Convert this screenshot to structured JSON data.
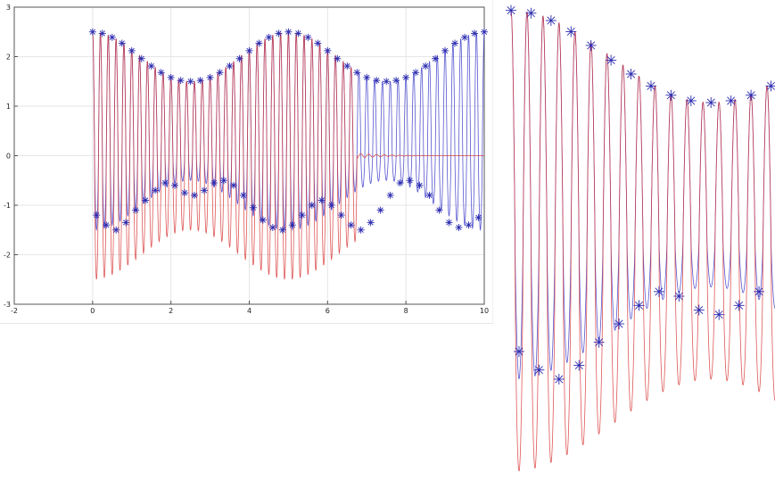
{
  "chart_data": [
    {
      "type": "line",
      "title": "",
      "xlabel": "",
      "ylabel": "",
      "xlim": [
        -2,
        10
      ],
      "ylim": [
        -3,
        3
      ],
      "xticks": [
        "-2",
        "0",
        "2",
        "4",
        "6",
        "8",
        "10"
      ],
      "yticks": [
        "-3",
        "-2",
        "-1",
        "0",
        "1",
        "2",
        "3"
      ],
      "grid": true,
      "legend": "none",
      "colors": {
        "signal": "#d93a3a",
        "model": "#4444cc",
        "markers": "#2b2bb0",
        "grid": "#e6e6e6",
        "axes": "#555555"
      },
      "signal_description": "oscillation period ~0.2 starting at x=0, envelope peaks 2.5 at x=0 and x=5, min 1.5 at x=2.5, red trace collapses to ~0 after x=6.75",
      "series": [
        {
          "name": "",
          "marker": "*",
          "x": [
            0.0,
            0.25,
            0.5,
            0.75,
            1.0,
            1.25,
            1.5,
            1.75,
            2.0,
            2.25,
            2.5,
            2.75,
            3.0,
            3.25,
            3.5,
            3.75,
            4.0,
            4.25,
            4.5,
            4.75,
            5.0,
            5.25,
            5.5,
            5.75,
            6.0,
            6.25,
            6.5,
            6.75,
            7.0,
            7.25,
            7.5,
            7.75,
            8.0,
            8.25,
            8.5,
            8.75,
            9.0,
            9.25,
            9.5,
            9.75,
            10.0
          ],
          "y": [
            2.5,
            2.47,
            2.39,
            2.27,
            2.12,
            1.96,
            1.81,
            1.68,
            1.58,
            1.52,
            1.5,
            1.52,
            1.58,
            1.68,
            1.81,
            1.96,
            2.12,
            2.27,
            2.39,
            2.47,
            2.5,
            2.47,
            2.39,
            2.27,
            2.12,
            1.96,
            1.81,
            1.68,
            1.58,
            1.52,
            1.5,
            1.52,
            1.58,
            1.68,
            1.81,
            1.96,
            2.12,
            2.27,
            2.39,
            2.47,
            2.5
          ]
        },
        {
          "name": "",
          "marker": "*",
          "x": [
            0.1,
            0.35,
            0.6,
            0.85,
            1.1,
            1.35,
            1.6,
            1.85,
            2.1,
            2.35,
            2.6,
            2.85,
            3.1,
            3.35,
            3.6,
            3.85,
            4.1,
            4.35,
            4.6,
            4.85,
            5.1,
            5.35,
            5.6,
            5.85,
            6.1,
            6.35,
            6.6,
            6.85,
            7.1,
            7.35,
            7.6,
            7.85,
            8.1,
            8.35,
            8.6,
            8.85,
            9.1,
            9.35,
            9.6,
            9.85
          ],
          "y": [
            -1.2,
            -1.4,
            -1.5,
            -1.35,
            -1.1,
            -0.9,
            -0.7,
            -0.55,
            -0.6,
            -0.75,
            -0.8,
            -0.7,
            -0.55,
            -0.5,
            -0.6,
            -0.8,
            -1.05,
            -1.3,
            -1.45,
            -1.5,
            -1.4,
            -1.2,
            -1.0,
            -0.9,
            -1.0,
            -1.2,
            -1.4,
            -1.5,
            -1.35,
            -1.1,
            -0.8,
            -0.55,
            -0.5,
            -0.6,
            -0.8,
            -1.1,
            -1.35,
            -1.45,
            -1.4,
            -1.25
          ]
        }
      ]
    },
    {
      "type": "line",
      "title": "",
      "xlabel": "",
      "ylabel": "",
      "description": "zoomed crop of the same signal, x from 0 to 3.3, no axes",
      "xlim": [
        0,
        3.3
      ],
      "ylim": [
        -3,
        3
      ],
      "grid": false,
      "legend": "none"
    }
  ]
}
